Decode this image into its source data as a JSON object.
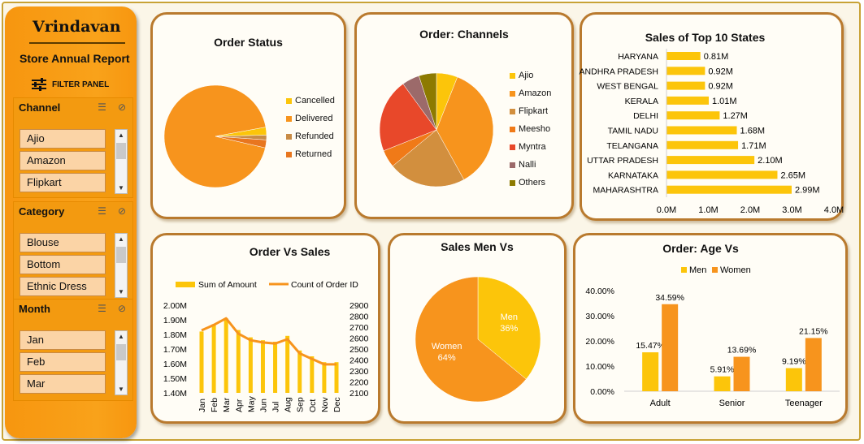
{
  "sidebar": {
    "brand": "Vrindavan",
    "subtitle": "Store Annual Report",
    "filter_label": "FILTER PANEL",
    "slicers": [
      {
        "title": "Channel",
        "items": [
          "Ajio",
          "Amazon",
          "Flipkart"
        ]
      },
      {
        "title": "Category",
        "items": [
          "Blouse",
          "Bottom",
          "Ethnic Dress"
        ]
      },
      {
        "title": "Month",
        "items": [
          "Jan",
          "Feb",
          "Mar"
        ]
      }
    ]
  },
  "colors": {
    "orange": "#f7941d",
    "yellow": "#fcc50a",
    "card_border": "#b97a2e",
    "sidebar": "#f7960f"
  },
  "chart_data": [
    {
      "id": "order_status",
      "type": "pie",
      "title": "Order Status",
      "labels": [
        "Cancelled",
        "Delivered",
        "Refunded",
        "Returned"
      ],
      "values": [
        2.5,
        93.5,
        1.5,
        2.5
      ],
      "colors": [
        "#fcc50a",
        "#f7941d",
        "#c88b45",
        "#e8761f"
      ]
    },
    {
      "id": "order_channels",
      "type": "pie",
      "title": "Order: Channels",
      "labels": [
        "Ajio",
        "Amazon",
        "Flipkart",
        "Meesho",
        "Myntra",
        "Nalli",
        "Others"
      ],
      "values": [
        6,
        36,
        22,
        5,
        21,
        5,
        5
      ],
      "colors": [
        "#fcc50a",
        "#f7941d",
        "#d28f3e",
        "#f07a18",
        "#e8482a",
        "#9c6a6a",
        "#8d7a00"
      ]
    },
    {
      "id": "top_states",
      "type": "bar",
      "orientation": "horizontal",
      "title": "Sales of Top 10 States",
      "categories": [
        "HARYANA",
        "ANDHRA PRADESH",
        "WEST BENGAL",
        "KERALA",
        "DELHI",
        "TAMIL NADU",
        "TELANGANA",
        "UTTAR PRADESH",
        "KARNATAKA",
        "MAHARASHTRA"
      ],
      "values": [
        0.81,
        0.92,
        0.92,
        1.01,
        1.27,
        1.68,
        1.71,
        2.1,
        2.65,
        2.99
      ],
      "data_labels": [
        "0.81M",
        "0.92M",
        "0.92M",
        "1.01M",
        "1.27M",
        "1.68M",
        "1.71M",
        "2.10M",
        "2.65M",
        "2.99M"
      ],
      "xlim": [
        0,
        4
      ],
      "xticks": [
        "0.0M",
        "1.0M",
        "2.0M",
        "3.0M",
        "4.0M"
      ],
      "color": "#fcc50a"
    },
    {
      "id": "order_vs_sales",
      "type": "bar+line",
      "title": "Order Vs Sales",
      "categories": [
        "Jan",
        "Feb",
        "Mar",
        "Apr",
        "May",
        "Jun",
        "Jul",
        "Aug",
        "Sep",
        "Oct",
        "Nov",
        "Dec"
      ],
      "series": [
        {
          "name": "Sum of Amount",
          "type": "bar",
          "axis": "left",
          "values": [
            1.82,
            1.87,
            1.91,
            1.83,
            1.78,
            1.76,
            1.75,
            1.79,
            1.69,
            1.65,
            1.61,
            1.61
          ],
          "color": "#fcc50a"
        },
        {
          "name": "Count of Order ID",
          "type": "line",
          "axis": "right",
          "values": [
            2670,
            2720,
            2780,
            2640,
            2580,
            2560,
            2550,
            2590,
            2460,
            2410,
            2360,
            2360
          ],
          "color": "#f7941d"
        }
      ],
      "ylim_left": [
        1.4,
        2.0
      ],
      "yticks_left": [
        "1.40M",
        "1.50M",
        "1.60M",
        "1.70M",
        "1.80M",
        "1.90M",
        "2.00M"
      ],
      "ylim_right": [
        2100,
        2900
      ],
      "yticks_right": [
        "2100",
        "2200",
        "2300",
        "2400",
        "2500",
        "2600",
        "2700",
        "2800",
        "2900"
      ]
    },
    {
      "id": "sales_men_vs",
      "type": "pie",
      "title": "Sales Men Vs",
      "labels": [
        "Men",
        "Women"
      ],
      "values": [
        36,
        64
      ],
      "data_labels": [
        "36%",
        "64%"
      ],
      "colors": [
        "#fcc50a",
        "#f7941d"
      ]
    },
    {
      "id": "order_age",
      "type": "bar",
      "title": "Order: Age Vs",
      "categories": [
        "Adult",
        "Senior",
        "Teenager"
      ],
      "series": [
        {
          "name": "Men",
          "values": [
            15.47,
            5.91,
            9.19
          ],
          "data_labels": [
            "15.47%",
            "5.91%",
            "9.19%"
          ],
          "color": "#fcc50a"
        },
        {
          "name": "Women",
          "values": [
            34.59,
            13.69,
            21.15
          ],
          "data_labels": [
            "34.59%",
            "13.69%",
            "21.15%"
          ],
          "color": "#f7941d"
        }
      ],
      "ylim": [
        0,
        40
      ],
      "yticks": [
        "0.00%",
        "10.00%",
        "20.00%",
        "30.00%",
        "40.00%"
      ]
    }
  ]
}
